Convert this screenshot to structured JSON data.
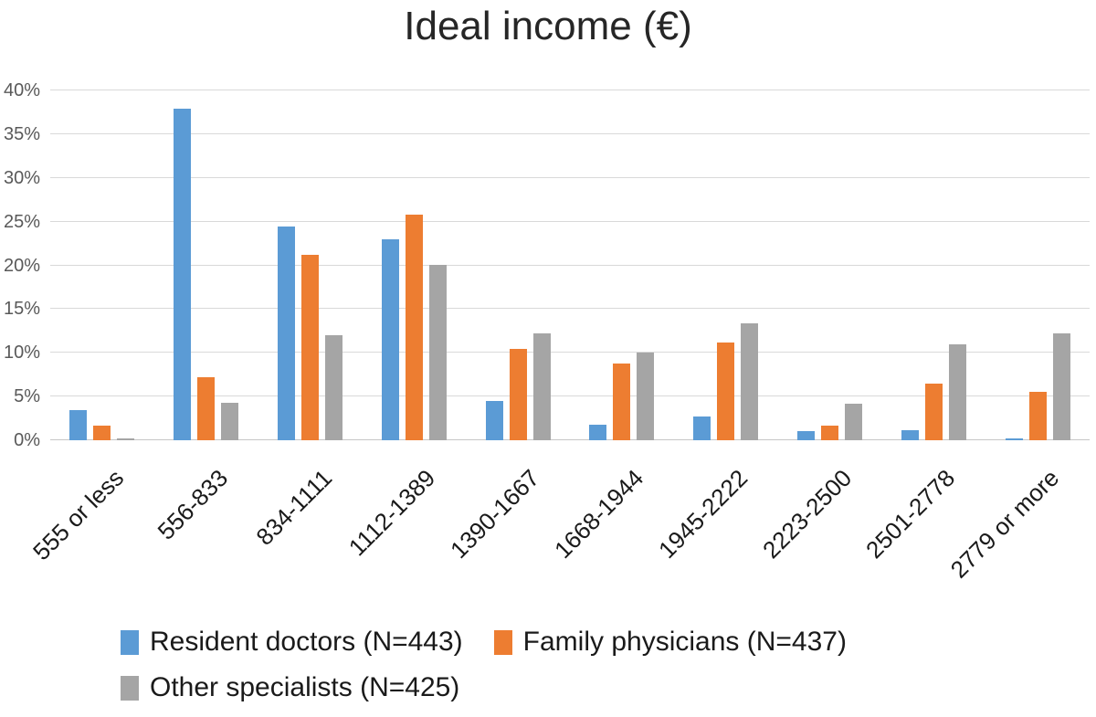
{
  "chart_data": {
    "type": "bar",
    "title": "Ideal income (€)",
    "categories": [
      "555 or less",
      "556-833",
      "834-1111",
      "1112-1389",
      "1390-1667",
      "1668-1944",
      "1945-2222",
      "2223-2500",
      "2501-2778",
      "2779 or more"
    ],
    "series": [
      {
        "name": "Resident doctors (N=443)",
        "color": "#5B9BD5",
        "values": [
          3.4,
          37.9,
          24.4,
          23.0,
          4.5,
          1.8,
          2.7,
          1.0,
          1.1,
          0.2
        ]
      },
      {
        "name": "Family physicians (N=437)",
        "color": "#ED7D31",
        "values": [
          1.7,
          7.2,
          21.2,
          25.8,
          10.4,
          8.8,
          11.2,
          1.7,
          6.5,
          5.5
        ]
      },
      {
        "name": "Other specialists (N=425)",
        "color": "#A5A5A5",
        "values": [
          0.2,
          4.3,
          12.0,
          20.1,
          12.2,
          10.0,
          13.4,
          4.2,
          11.0,
          12.2
        ]
      }
    ],
    "y_ticks": [
      "0%",
      "5%",
      "10%",
      "15%",
      "20%",
      "25%",
      "30%",
      "35%",
      "40%"
    ],
    "y_tick_values": [
      0,
      5,
      10,
      15,
      20,
      25,
      30,
      35,
      40
    ],
    "ylim": [
      0,
      40
    ],
    "xlabel": "",
    "ylabel": "",
    "grid": true,
    "x_tick_rotation": 45,
    "legend_position": "bottom"
  },
  "style_colors": {
    "gridline": "#D9D9D9",
    "axis_line": "#C6C6C6",
    "y_tick_text": "#595959",
    "x_tick_text": "#1A1A1A",
    "title_text": "#262626"
  }
}
